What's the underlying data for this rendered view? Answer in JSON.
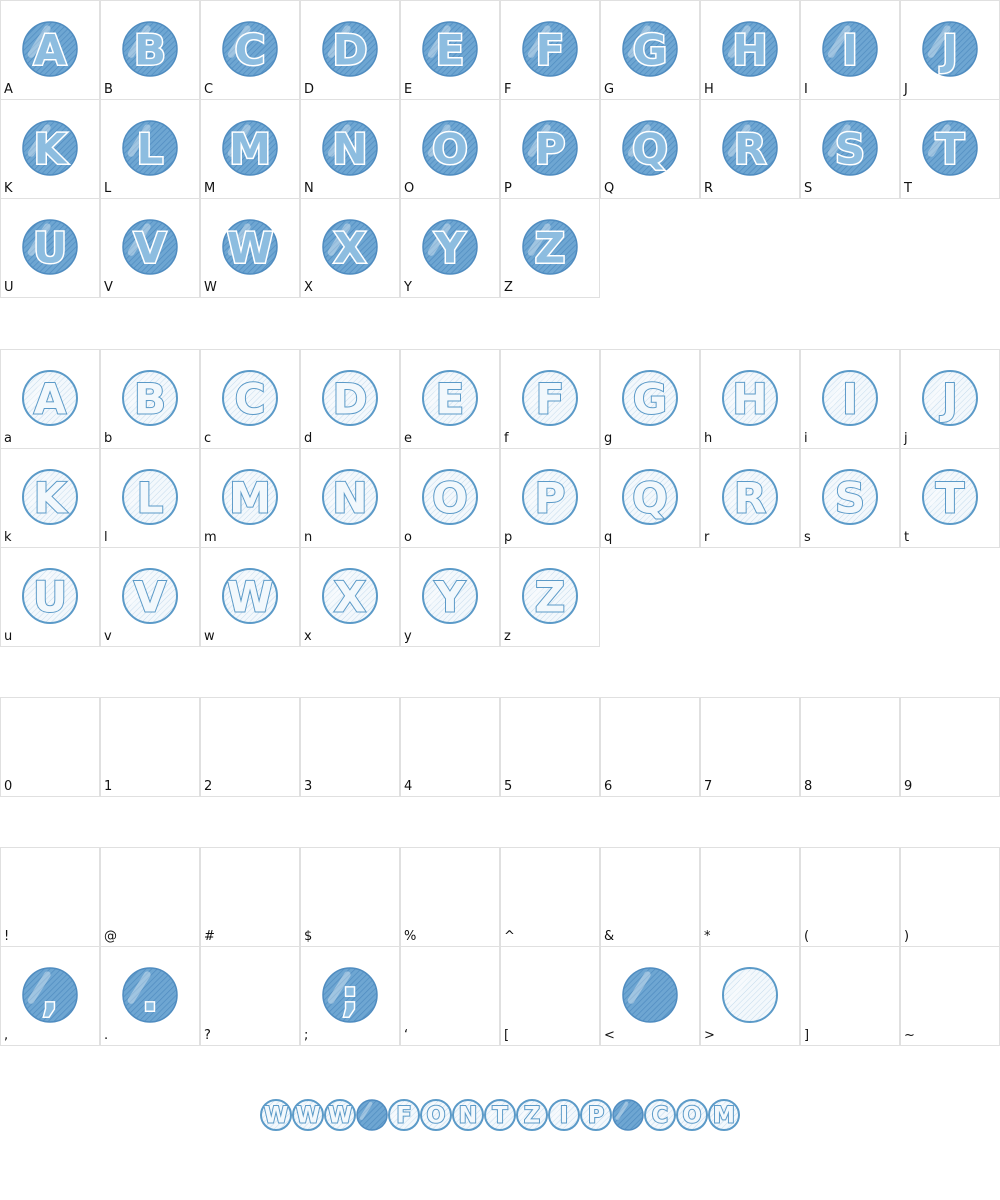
{
  "sections": [
    {
      "cells": [
        {
          "label": "A",
          "glyph": "A",
          "style": "filled"
        },
        {
          "label": "B",
          "glyph": "B",
          "style": "filled"
        },
        {
          "label": "C",
          "glyph": "C",
          "style": "filled"
        },
        {
          "label": "D",
          "glyph": "D",
          "style": "filled"
        },
        {
          "label": "E",
          "glyph": "E",
          "style": "filled"
        },
        {
          "label": "F",
          "glyph": "F",
          "style": "filled"
        },
        {
          "label": "G",
          "glyph": "G",
          "style": "filled"
        },
        {
          "label": "H",
          "glyph": "H",
          "style": "filled"
        },
        {
          "label": "I",
          "glyph": "I",
          "style": "filled"
        },
        {
          "label": "J",
          "glyph": "J",
          "style": "filled"
        },
        {
          "label": "K",
          "glyph": "K",
          "style": "filled"
        },
        {
          "label": "L",
          "glyph": "L",
          "style": "filled"
        },
        {
          "label": "M",
          "glyph": "M",
          "style": "filled"
        },
        {
          "label": "N",
          "glyph": "N",
          "style": "filled"
        },
        {
          "label": "O",
          "glyph": "O",
          "style": "filled"
        },
        {
          "label": "P",
          "glyph": "P",
          "style": "filled"
        },
        {
          "label": "Q",
          "glyph": "Q",
          "style": "filled"
        },
        {
          "label": "R",
          "glyph": "R",
          "style": "filled"
        },
        {
          "label": "S",
          "glyph": "S",
          "style": "filled"
        },
        {
          "label": "T",
          "glyph": "T",
          "style": "filled"
        },
        {
          "label": "U",
          "glyph": "U",
          "style": "filled"
        },
        {
          "label": "V",
          "glyph": "V",
          "style": "filled"
        },
        {
          "label": "W",
          "glyph": "W",
          "style": "filled"
        },
        {
          "label": "X",
          "glyph": "X",
          "style": "filled"
        },
        {
          "label": "Y",
          "glyph": "Y",
          "style": "filled"
        },
        {
          "label": "Z",
          "glyph": "Z",
          "style": "filled"
        }
      ]
    },
    {
      "cells": [
        {
          "label": "a",
          "glyph": "A",
          "style": "light"
        },
        {
          "label": "b",
          "glyph": "B",
          "style": "light"
        },
        {
          "label": "c",
          "glyph": "C",
          "style": "light"
        },
        {
          "label": "d",
          "glyph": "D",
          "style": "light"
        },
        {
          "label": "e",
          "glyph": "E",
          "style": "light"
        },
        {
          "label": "f",
          "glyph": "F",
          "style": "light"
        },
        {
          "label": "g",
          "glyph": "G",
          "style": "light"
        },
        {
          "label": "h",
          "glyph": "H",
          "style": "light"
        },
        {
          "label": "i",
          "glyph": "I",
          "style": "light"
        },
        {
          "label": "j",
          "glyph": "J",
          "style": "light"
        },
        {
          "label": "k",
          "glyph": "K",
          "style": "light"
        },
        {
          "label": "l",
          "glyph": "L",
          "style": "light"
        },
        {
          "label": "m",
          "glyph": "M",
          "style": "light"
        },
        {
          "label": "n",
          "glyph": "N",
          "style": "light"
        },
        {
          "label": "o",
          "glyph": "O",
          "style": "light"
        },
        {
          "label": "p",
          "glyph": "P",
          "style": "light"
        },
        {
          "label": "q",
          "glyph": "Q",
          "style": "light"
        },
        {
          "label": "r",
          "glyph": "R",
          "style": "light"
        },
        {
          "label": "s",
          "glyph": "S",
          "style": "light"
        },
        {
          "label": "t",
          "glyph": "T",
          "style": "light"
        },
        {
          "label": "u",
          "glyph": "U",
          "style": "light"
        },
        {
          "label": "v",
          "glyph": "V",
          "style": "light"
        },
        {
          "label": "w",
          "glyph": "W",
          "style": "light"
        },
        {
          "label": "x",
          "glyph": "X",
          "style": "light"
        },
        {
          "label": "y",
          "glyph": "Y",
          "style": "light"
        },
        {
          "label": "z",
          "glyph": "Z",
          "style": "light"
        }
      ]
    },
    {
      "cells": [
        {
          "label": "0"
        },
        {
          "label": "1"
        },
        {
          "label": "2"
        },
        {
          "label": "3"
        },
        {
          "label": "4"
        },
        {
          "label": "5"
        },
        {
          "label": "6"
        },
        {
          "label": "7"
        },
        {
          "label": "8"
        },
        {
          "label": "9"
        }
      ]
    },
    {
      "cells": [
        {
          "label": "!"
        },
        {
          "label": "@"
        },
        {
          "label": "#"
        },
        {
          "label": "$"
        },
        {
          "label": "%"
        },
        {
          "label": "^"
        },
        {
          "label": "&"
        },
        {
          "label": "*"
        },
        {
          "label": "("
        },
        {
          "label": ")"
        },
        {
          "label": ",",
          "glyph": ",",
          "style": "filled"
        },
        {
          "label": ".",
          "glyph": ".",
          "style": "filled"
        },
        {
          "label": "?"
        },
        {
          "label": ";",
          "glyph": ";",
          "style": "filled"
        },
        {
          "label": "‘"
        },
        {
          "label": "["
        },
        {
          "label": "<",
          "style": "filled"
        },
        {
          "label": ">",
          "style": "light"
        },
        {
          "label": "]"
        },
        {
          "label": "~"
        }
      ]
    }
  ],
  "footer": {
    "glyphs": [
      {
        "glyph": "W",
        "style": "light"
      },
      {
        "glyph": "W",
        "style": "light"
      },
      {
        "glyph": "W",
        "style": "light"
      },
      {
        "style": "filled"
      },
      {
        "glyph": "F",
        "style": "light"
      },
      {
        "glyph": "O",
        "style": "light"
      },
      {
        "glyph": "N",
        "style": "light"
      },
      {
        "glyph": "T",
        "style": "light"
      },
      {
        "glyph": "Z",
        "style": "light"
      },
      {
        "glyph": "I",
        "style": "light"
      },
      {
        "glyph": "P",
        "style": "light"
      },
      {
        "style": "filled"
      },
      {
        "glyph": "C",
        "style": "light"
      },
      {
        "glyph": "O",
        "style": "light"
      },
      {
        "glyph": "M",
        "style": "light"
      }
    ]
  }
}
